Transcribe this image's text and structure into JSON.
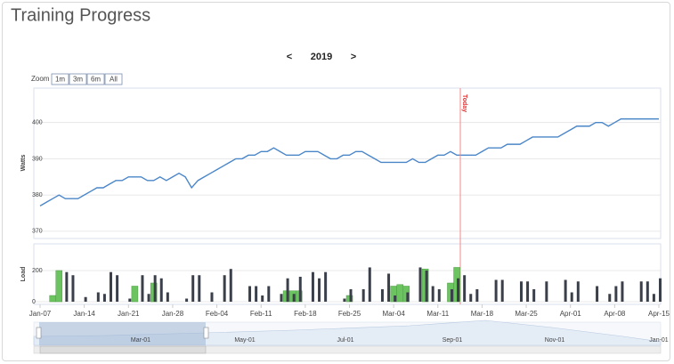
{
  "header": {
    "title": "Training Progress"
  },
  "nav": {
    "prev": "<",
    "year": "2019",
    "next": ">"
  },
  "zoom": {
    "label": "Zoom",
    "buttons": [
      "1m",
      "3m",
      "6m",
      "All"
    ]
  },
  "chart_data": [
    {
      "type": "line",
      "y_label": "Watts",
      "annotation": "Today",
      "color": "#4a86c8",
      "grid": true,
      "ylim": [
        368,
        409.5
      ],
      "yticks": [
        370,
        380,
        390,
        400
      ],
      "categories": [
        "Jan-07",
        null,
        null,
        null,
        null,
        null,
        null,
        "Jan-14",
        null,
        null,
        null,
        null,
        null,
        null,
        "Jan-21",
        null,
        null,
        null,
        null,
        null,
        null,
        "Jan-28",
        null,
        null,
        null,
        null,
        null,
        null,
        "Feb-04",
        null,
        null,
        null,
        null,
        null,
        null,
        "Feb-11",
        null,
        null,
        null,
        null,
        null,
        null,
        "Feb-18",
        null,
        null,
        null,
        null,
        null,
        null,
        "Feb-25",
        null,
        null,
        null,
        null,
        null,
        null,
        "Mar-04",
        null,
        null,
        null,
        null,
        null,
        null,
        "Mar-11",
        null,
        null,
        null,
        null,
        null,
        null,
        "Mar-18",
        null,
        null,
        null,
        null,
        null,
        null,
        "Mar-25",
        null,
        null,
        null,
        null,
        null,
        null,
        "Apr-01",
        null,
        null,
        null,
        null,
        null,
        null,
        "Apr-08",
        null,
        null,
        null,
        null,
        null,
        null,
        "Apr-15"
      ],
      "values": [
        377,
        378,
        379,
        380,
        379,
        379,
        379,
        380,
        381,
        382,
        382,
        383,
        384,
        384,
        385,
        385,
        385,
        384,
        384,
        385,
        384,
        385,
        386,
        385,
        382,
        384,
        385,
        386,
        387,
        388,
        389,
        390,
        390,
        391,
        391,
        392,
        392,
        393,
        392,
        391,
        391,
        391,
        392,
        392,
        392,
        391,
        390,
        390,
        391,
        391,
        392,
        392,
        391,
        390,
        389,
        389,
        389,
        389,
        389,
        390,
        389,
        389,
        390,
        391,
        391,
        392,
        391,
        391,
        391,
        391,
        392,
        393,
        393,
        393,
        394,
        394,
        394,
        395,
        396,
        396,
        396,
        396,
        396,
        397,
        398,
        399,
        399,
        399,
        400,
        400,
        399,
        400,
        401,
        401,
        401,
        401,
        401,
        401,
        401
      ]
    },
    {
      "type": "bar",
      "y_label": "Load",
      "grid": true,
      "ylim": [
        -17,
        371
      ],
      "yticks": [
        0,
        200
      ],
      "categories": [
        "Jan-07",
        null,
        null,
        null,
        null,
        null,
        null,
        "Jan-14",
        null,
        null,
        null,
        null,
        null,
        null,
        "Jan-21",
        null,
        null,
        null,
        null,
        null,
        null,
        "Jan-28",
        null,
        null,
        null,
        null,
        null,
        null,
        "Feb-04",
        null,
        null,
        null,
        null,
        null,
        null,
        "Feb-11",
        null,
        null,
        null,
        null,
        null,
        null,
        "Feb-18",
        null,
        null,
        null,
        null,
        null,
        null,
        "Feb-25",
        null,
        null,
        null,
        null,
        null,
        null,
        "Mar-04",
        null,
        null,
        null,
        null,
        null,
        null,
        "Mar-11",
        null,
        null,
        null,
        null,
        null,
        null,
        "Mar-18",
        null,
        null,
        null,
        null,
        null,
        null,
        "Mar-25",
        null,
        null,
        null,
        null,
        null,
        null,
        "Apr-01",
        null,
        null,
        null,
        null,
        null,
        null,
        "Apr-08",
        null,
        null,
        null,
        null,
        null,
        null,
        "Apr-15"
      ],
      "series": [
        {
          "color": "#6cc461",
          "values": [
            null,
            null,
            40,
            200,
            null,
            null,
            null,
            null,
            null,
            null,
            null,
            null,
            null,
            null,
            null,
            100,
            null,
            null,
            120,
            null,
            null,
            null,
            null,
            null,
            null,
            null,
            null,
            null,
            null,
            null,
            null,
            null,
            null,
            null,
            null,
            null,
            null,
            null,
            null,
            70,
            70,
            70,
            null,
            null,
            null,
            null,
            null,
            null,
            null,
            40,
            null,
            null,
            null,
            null,
            null,
            null,
            100,
            110,
            100,
            null,
            null,
            210,
            null,
            null,
            null,
            120,
            220,
            null,
            null,
            null,
            null,
            null,
            null,
            null,
            null,
            null,
            null,
            null,
            null,
            null,
            null,
            null,
            null,
            null,
            null,
            null,
            null,
            null,
            null,
            null,
            null,
            null,
            null,
            null,
            null,
            null,
            null,
            null,
            null
          ]
        },
        {
          "color": "#3a3f4a",
          "values": [
            null,
            null,
            null,
            null,
            190,
            170,
            null,
            30,
            null,
            60,
            50,
            190,
            170,
            null,
            20,
            null,
            170,
            50,
            170,
            150,
            60,
            null,
            null,
            20,
            170,
            170,
            null,
            60,
            null,
            170,
            210,
            null,
            null,
            100,
            100,
            40,
            100,
            null,
            50,
            150,
            50,
            160,
            null,
            190,
            150,
            190,
            null,
            null,
            20,
            80,
            null,
            80,
            220,
            null,
            80,
            180,
            40,
            null,
            60,
            null,
            220,
            200,
            100,
            80,
            null,
            80,
            150,
            170,
            50,
            80,
            null,
            null,
            140,
            140,
            null,
            null,
            130,
            130,
            80,
            null,
            130,
            null,
            null,
            140,
            60,
            130,
            null,
            null,
            100,
            null,
            50,
            100,
            130,
            null,
            null,
            130,
            130,
            50,
            150
          ]
        }
      ]
    }
  ],
  "navigator": {
    "labels": [
      "Mar-01",
      "May-01",
      "Jul-01",
      "Sep-01",
      "Nov-01",
      "Jan-01"
    ]
  }
}
